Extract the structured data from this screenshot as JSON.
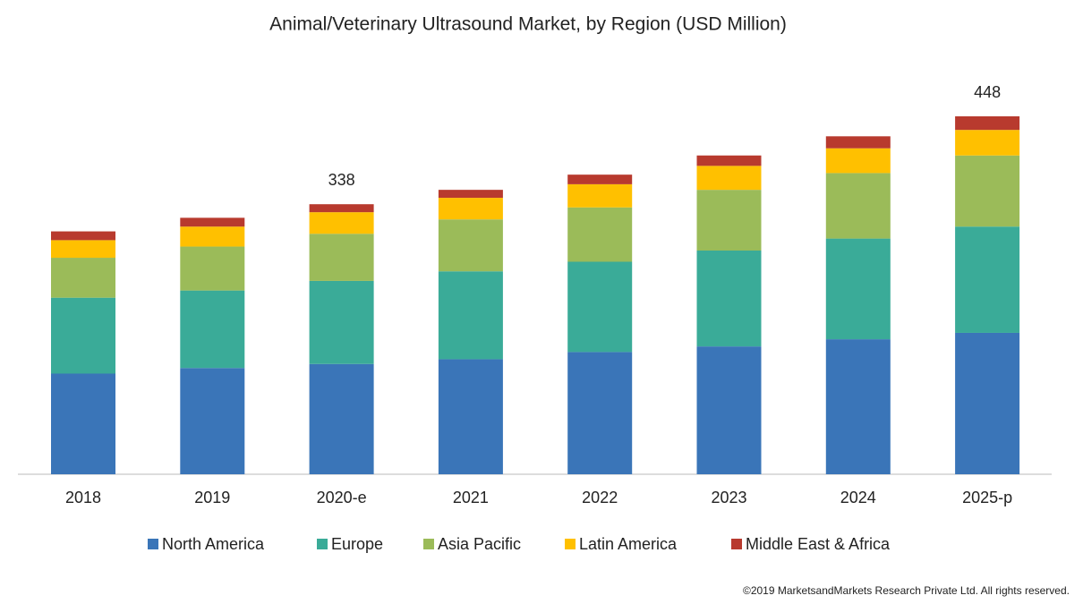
{
  "chart_data": {
    "type": "stacked_bar",
    "title": "Animal/Veterinary Ultrasound Market, by Region (USD Million)",
    "categories": [
      "2018",
      "2019",
      "2020-e",
      "2021",
      "2022",
      "2023",
      "2024",
      "2025-p"
    ],
    "series": [
      {
        "name": "North America",
        "color": "#3a75b8",
        "values": [
          126,
          133,
          138,
          144,
          153,
          160,
          169,
          177
        ]
      },
      {
        "name": "Europe",
        "color": "#3aab98",
        "values": [
          95,
          97,
          104,
          110,
          113,
          120,
          126,
          133
        ]
      },
      {
        "name": "Asia Pacific",
        "color": "#9bbb59",
        "values": [
          50,
          55,
          59,
          65,
          68,
          76,
          82,
          89
        ]
      },
      {
        "name": "Latin America",
        "color": "#ffc000",
        "values": [
          22,
          25,
          27,
          27,
          29,
          30,
          31,
          32
        ]
      },
      {
        "name": "Middle East & Africa",
        "color": "#b83a2e",
        "values": [
          11,
          11,
          10,
          10,
          12,
          13,
          15,
          17
        ]
      }
    ],
    "totals": [
      null,
      null,
      338,
      null,
      null,
      null,
      null,
      448
    ],
    "source": "©2019 MarketsandMarkets Research Private Ltd. All rights reserved."
  }
}
